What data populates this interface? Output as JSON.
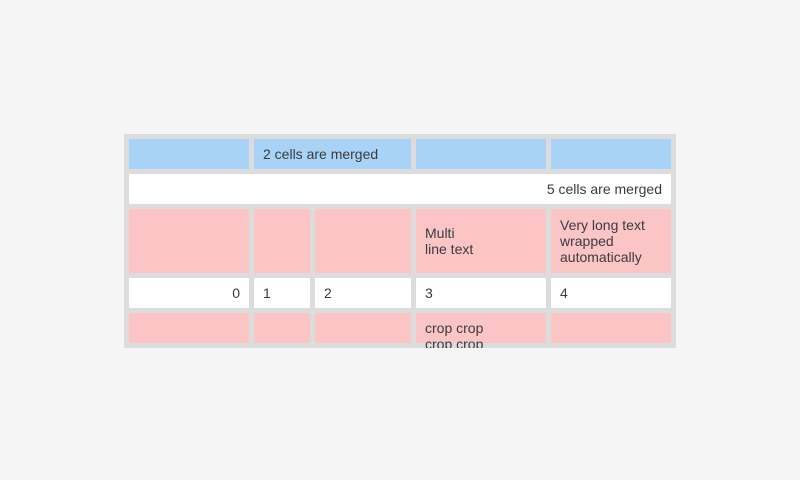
{
  "page": {
    "background_color": "#f5f5f5"
  },
  "table": {
    "description": "table widget with merged, multiline and cropped cells",
    "colors": {
      "frame_gray": "#dcdcdc",
      "cell_blue": "#a8d3f6",
      "cell_pink": "#fbc5c5",
      "cell_white": "#ffffff",
      "text": "#3a3b3f"
    },
    "column_count": 5,
    "rows": [
      {
        "cells": [
          {
            "text": "",
            "bg": "blue",
            "span": 1
          },
          {
            "text": "2 cells are merged",
            "bg": "blue",
            "span": 2,
            "align": "left"
          },
          {
            "text": "",
            "bg": "blue",
            "span": 1
          },
          {
            "text": "",
            "bg": "blue",
            "span": 1
          }
        ]
      },
      {
        "cells": [
          {
            "text": "5 cells are merged",
            "bg": "white",
            "span": 5,
            "align": "right"
          }
        ]
      },
      {
        "cells": [
          {
            "text": "",
            "bg": "pink",
            "span": 1
          },
          {
            "text": "",
            "bg": "pink",
            "span": 1
          },
          {
            "text": "",
            "bg": "pink",
            "span": 1
          },
          {
            "text": "Multi\nline text",
            "bg": "pink",
            "span": 1,
            "align": "left"
          },
          {
            "text": "Very long text wrapped automatically",
            "bg": "pink",
            "span": 1,
            "align": "left"
          }
        ]
      },
      {
        "cells": [
          {
            "text": "0",
            "bg": "white",
            "span": 1,
            "align": "right"
          },
          {
            "text": "1",
            "bg": "white",
            "span": 1,
            "align": "left"
          },
          {
            "text": "2",
            "bg": "white",
            "span": 1,
            "align": "left"
          },
          {
            "text": "3",
            "bg": "white",
            "span": 1,
            "align": "left"
          },
          {
            "text": "4",
            "bg": "white",
            "span": 1,
            "align": "left"
          }
        ]
      },
      {
        "cells": [
          {
            "text": "",
            "bg": "pink",
            "span": 1
          },
          {
            "text": "",
            "bg": "pink",
            "span": 1
          },
          {
            "text": "",
            "bg": "pink",
            "span": 1
          },
          {
            "text": "crop crop crop crop",
            "bg": "pink",
            "span": 1,
            "align": "left",
            "cropped": true
          },
          {
            "text": "",
            "bg": "pink",
            "span": 1
          }
        ]
      }
    ]
  }
}
